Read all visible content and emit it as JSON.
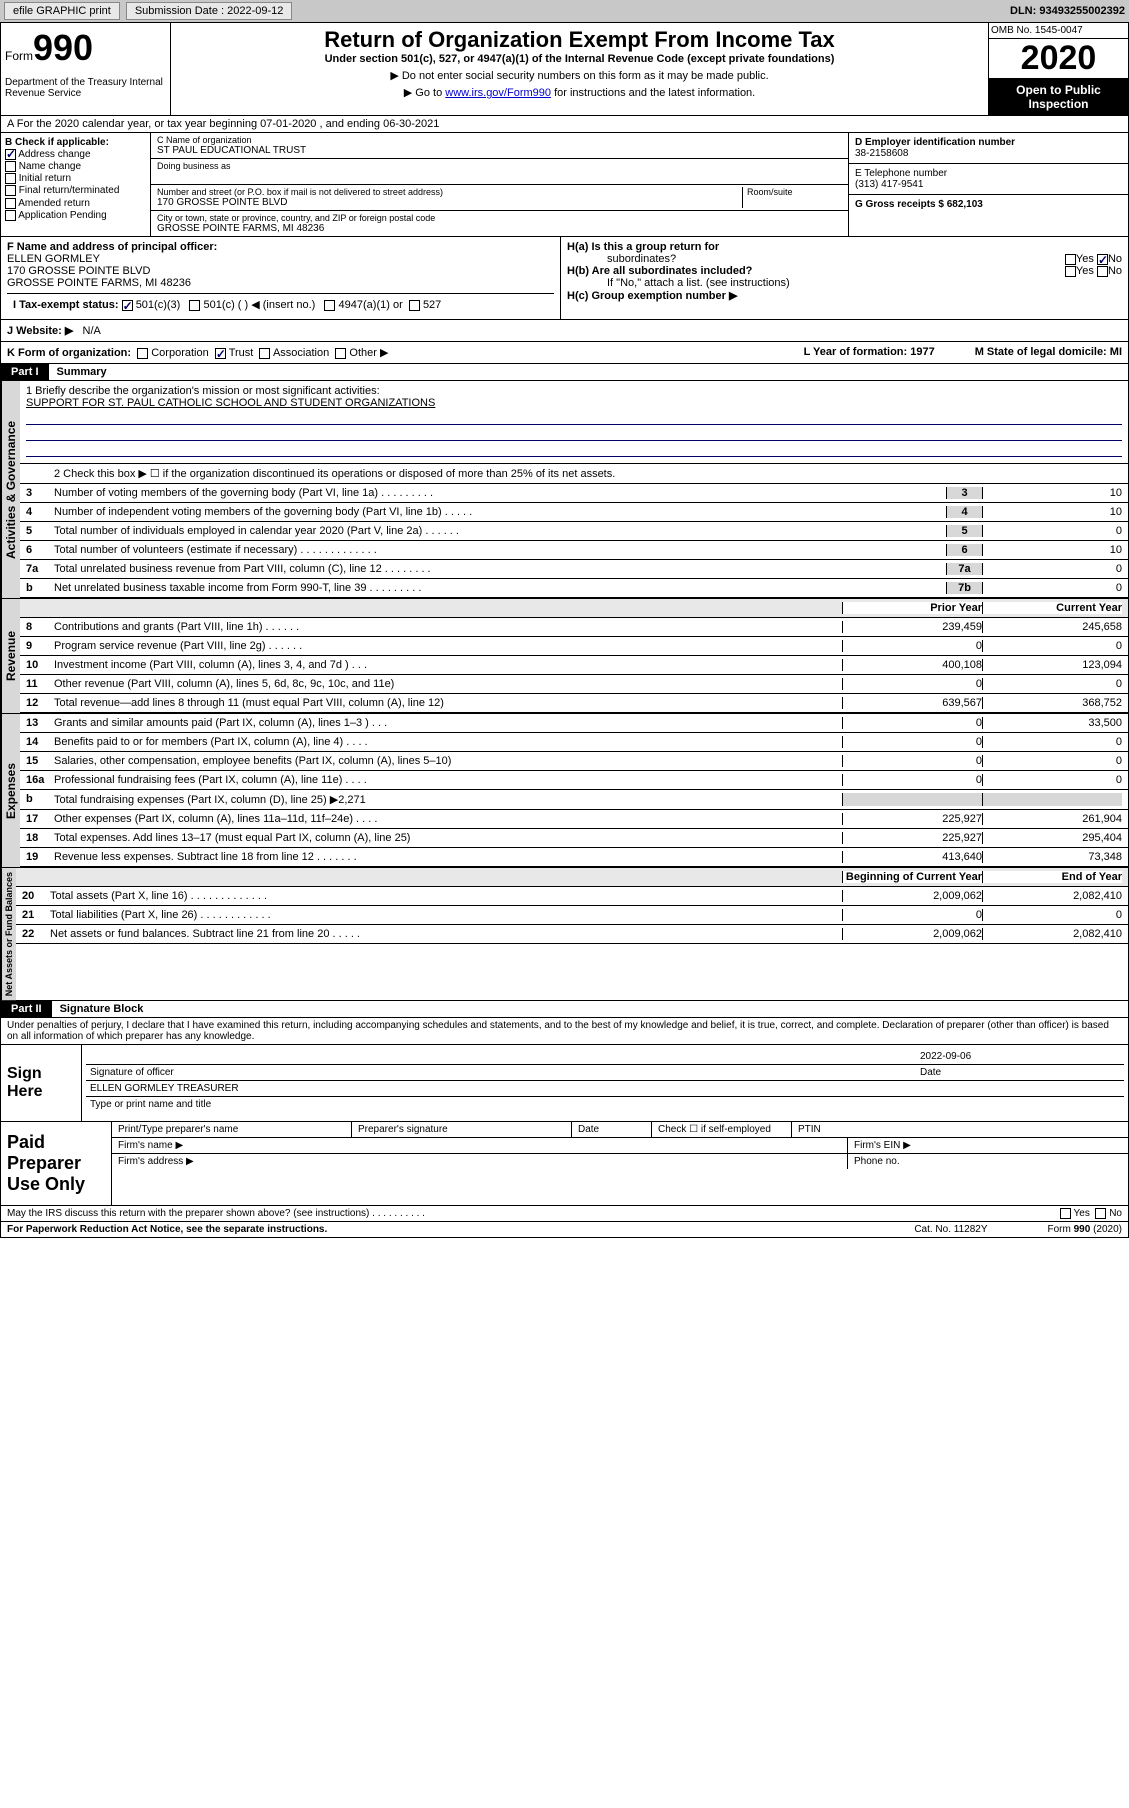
{
  "topbar": {
    "efile": "efile GRAPHIC print",
    "sub_label": "Submission Date : 2022-09-12",
    "dln": "DLN: 93493255002392"
  },
  "header": {
    "form_word": "Form",
    "form_num": "990",
    "dept": "Department of the Treasury Internal Revenue Service",
    "title": "Return of Organization Exempt From Income Tax",
    "subtitle": "Under section 501(c), 527, or 4947(a)(1) of the Internal Revenue Code (except private foundations)",
    "arrow1": "▶ Do not enter social security numbers on this form as it may be made public.",
    "arrow2_pre": "▶ Go to ",
    "arrow2_link": "www.irs.gov/Form990",
    "arrow2_post": " for instructions and the latest information.",
    "omb": "OMB No. 1545-0047",
    "year": "2020",
    "inspect": "Open to Public Inspection"
  },
  "lineA": "A For the 2020 calendar year, or tax year beginning 07-01-2020    , and ending 06-30-2021",
  "B": {
    "label": "B Check if applicable:",
    "address_change": "Address change",
    "name_change": "Name change",
    "initial": "Initial return",
    "final": "Final return/terminated",
    "amended": "Amended return",
    "app_pending": "Application Pending"
  },
  "C": {
    "name_label": "C Name of organization",
    "name": "ST PAUL EDUCATIONAL TRUST",
    "dba_label": "Doing business as",
    "addr_label": "Number and street (or P.O. box if mail is not delivered to street address)",
    "addr": "170 GROSSE POINTE BLVD",
    "room_label": "Room/suite",
    "city_label": "City or town, state or province, country, and ZIP or foreign postal code",
    "city": "GROSSE POINTE FARMS, MI  48236"
  },
  "D": {
    "label": "D Employer identification number",
    "val": "38-2158608"
  },
  "E": {
    "label": "E Telephone number",
    "val": "(313) 417-9541"
  },
  "G": {
    "label": "G Gross receipts $ 682,103"
  },
  "F": {
    "label": "F  Name and address of principal officer:",
    "name": "ELLEN GORMLEY",
    "addr1": "170 GROSSE POINTE BLVD",
    "addr2": "GROSSE POINTE FARMS, MI  48236"
  },
  "I": {
    "label": "I   Tax-exempt status:",
    "c3": "501(c)(3)",
    "c": "501(c) (  ) ◀ (insert no.)",
    "a1": "4947(a)(1) or",
    "s527": "527"
  },
  "J": {
    "label": "J   Website: ▶",
    "val": "N/A"
  },
  "H": {
    "a": "H(a)   Is this a group return for",
    "a2": "subordinates?",
    "b": "H(b)  Are all subordinates included?",
    "b2": "If \"No,\" attach a list. (see instructions)",
    "c": "H(c)   Group exemption number ▶",
    "yes": "Yes",
    "no": "No"
  },
  "K": {
    "label": "K Form of organization:",
    "corp": "Corporation",
    "trust": "Trust",
    "assoc": "Association",
    "other": "Other ▶"
  },
  "L": {
    "label": "L Year of formation: 1977"
  },
  "M": {
    "label": "M State of legal domicile: MI"
  },
  "part1": {
    "hdr": "Part I",
    "title": "Summary"
  },
  "summary": {
    "l1": "1  Briefly describe the organization's mission or most significant activities:",
    "l1val": "SUPPORT FOR ST. PAUL CATHOLIC SCHOOL AND STUDENT ORGANIZATIONS",
    "l2": "2  Check this box ▶ ☐ if the organization discontinued its operations or disposed of more than 25% of its net assets.",
    "rows_ag": [
      {
        "n": "3",
        "t": "Number of voting members of the governing body (Part VI, line 1a)   .    .    .    .    .    .    .    .    .",
        "b": "3",
        "v": "10"
      },
      {
        "n": "4",
        "t": "Number of independent voting members of the governing body (Part VI, line 1b)  .    .    .    .    .",
        "b": "4",
        "v": "10"
      },
      {
        "n": "5",
        "t": "Total number of individuals employed in calendar year 2020 (Part V, line 2a)   .    .    .    .    .    .",
        "b": "5",
        "v": "0"
      },
      {
        "n": "6",
        "t": "Total number of volunteers (estimate if necessary)    .    .    .    .    .    .    .    .    .    .    .    .    .",
        "b": "6",
        "v": "10"
      },
      {
        "n": "7a",
        "t": "Total unrelated business revenue from Part VIII, column (C), line 12   .    .    .    .    .    .    .    .",
        "b": "7a",
        "v": "0"
      },
      {
        "n": " b",
        "t": "Net unrelated business taxable income from Form 990-T, line 39   .    .    .    .    .    .    .    .    .",
        "b": "7b",
        "v": "0"
      }
    ],
    "py": "Prior Year",
    "cy": "Current Year",
    "rows_rev": [
      {
        "n": "8",
        "t": "Contributions and grants (Part VIII, line 1h)    .    .    .    .    .    .",
        "p": "239,459",
        "c": "245,658"
      },
      {
        "n": "9",
        "t": "Program service revenue (Part VIII, line 2g)    .    .    .    .    .    .",
        "p": "0",
        "c": "0"
      },
      {
        "n": "10",
        "t": "Investment income (Part VIII, column (A), lines 3, 4, and 7d )    .    .    .",
        "p": "400,108",
        "c": "123,094"
      },
      {
        "n": "11",
        "t": "Other revenue (Part VIII, column (A), lines 5, 6d, 8c, 9c, 10c, and 11e)",
        "p": "0",
        "c": "0"
      },
      {
        "n": "12",
        "t": "Total revenue—add lines 8 through 11 (must equal Part VIII, column (A), line 12)",
        "p": "639,567",
        "c": "368,752"
      }
    ],
    "rows_exp": [
      {
        "n": "13",
        "t": "Grants and similar amounts paid (Part IX, column (A), lines 1–3 )   .    .    .",
        "p": "0",
        "c": "33,500"
      },
      {
        "n": "14",
        "t": "Benefits paid to or for members (Part IX, column (A), line 4)   .    .    .    .",
        "p": "0",
        "c": "0"
      },
      {
        "n": "15",
        "t": "Salaries, other compensation, employee benefits (Part IX, column (A), lines 5–10)",
        "p": "0",
        "c": "0"
      },
      {
        "n": "16a",
        "t": "Professional fundraising fees (Part IX, column (A), line 11e)   .    .    .    .",
        "p": "0",
        "c": "0"
      },
      {
        "n": "  b",
        "t": "Total fundraising expenses (Part IX, column (D), line 25) ▶2,271",
        "p": "",
        "c": ""
      },
      {
        "n": "17",
        "t": "Other expenses (Part IX, column (A), lines 11a–11d, 11f–24e)   .    .    .    .",
        "p": "225,927",
        "c": "261,904"
      },
      {
        "n": "18",
        "t": "Total expenses. Add lines 13–17 (must equal Part IX, column (A), line 25)",
        "p": "225,927",
        "c": "295,404"
      },
      {
        "n": "19",
        "t": "Revenue less expenses. Subtract line 18 from line 12   .    .    .    .    .    .    .",
        "p": "413,640",
        "c": "73,348"
      }
    ],
    "bcy": "Beginning of Current Year",
    "eoy": "End of Year",
    "rows_na": [
      {
        "n": "20",
        "t": "Total assets (Part X, line 16)   .    .    .    .    .    .    .    .    .    .    .    .    .",
        "p": "2,009,062",
        "c": "2,082,410"
      },
      {
        "n": "21",
        "t": "Total liabilities (Part X, line 26)   .    .    .    .    .    .    .    .    .    .    .    .",
        "p": "0",
        "c": "0"
      },
      {
        "n": "22",
        "t": "Net assets or fund balances. Subtract line 21 from line 20   .    .    .    .    .",
        "p": "2,009,062",
        "c": "2,082,410"
      }
    ]
  },
  "side": {
    "ag": "Activities & Governance",
    "rev": "Revenue",
    "exp": "Expenses",
    "na": "Net Assets or Fund Balances"
  },
  "part2": {
    "hdr": "Part II",
    "title": "Signature Block"
  },
  "perjury": "Under penalties of perjury, I declare that I have examined this return, including accompanying schedules and statements, and to the best of my knowledge and belief, it is true, correct, and complete. Declaration of preparer (other than officer) is based on all information of which preparer has any knowledge.",
  "sign": {
    "here": "Sign Here",
    "sig_officer": "Signature of officer",
    "date": "Date",
    "date_val": "2022-09-06",
    "name": "ELLEN GORMLEY  TREASURER",
    "type": "Type or print name and title"
  },
  "prep": {
    "label": "Paid Preparer Use Only",
    "print": "Print/Type preparer's name",
    "sig": "Preparer's signature",
    "date": "Date",
    "check": "Check ☐ if self-employed",
    "ptin": "PTIN",
    "firm_name": "Firm's name   ▶",
    "firm_ein": "Firm's EIN ▶",
    "firm_addr": "Firm's address ▶",
    "phone": "Phone no."
  },
  "may_discuss": "May the IRS discuss this return with the preparer shown above? (see instructions)   .    .    .    .    .    .    .    .    .    .",
  "footer": {
    "pra": "For Paperwork Reduction Act Notice, see the separate instructions.",
    "cat": "Cat. No. 11282Y",
    "form": "Form 990 (2020)"
  }
}
